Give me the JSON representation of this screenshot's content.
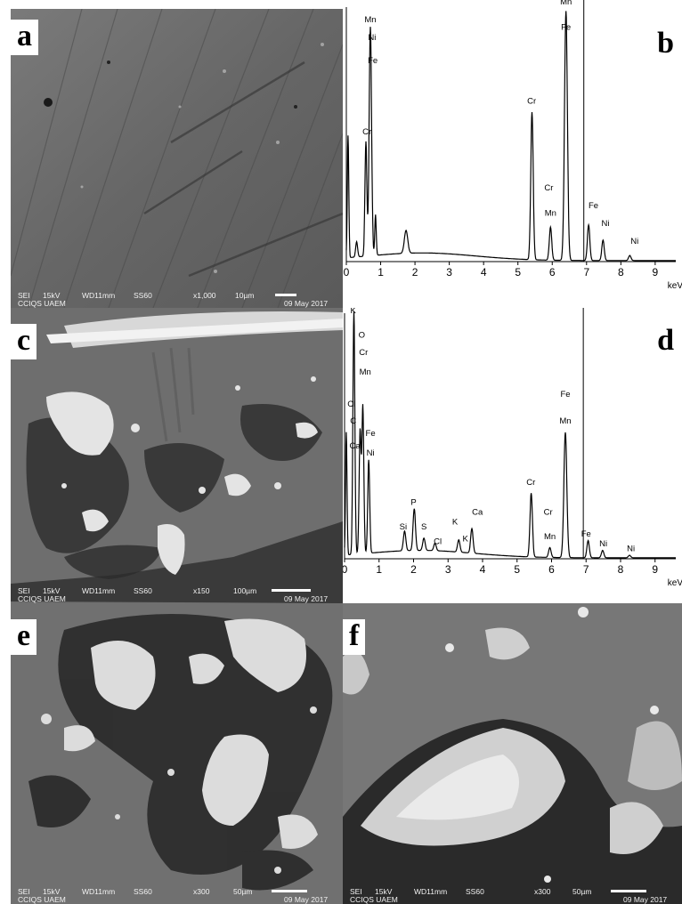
{
  "panels": {
    "a": {
      "letter": "a",
      "info": {
        "mode": "SEI",
        "kv": "15kV",
        "wd": "WD11mm",
        "ss": "SS60",
        "mag": "x1,000",
        "scale": "10µm",
        "date": "09 May 2017",
        "lab": "CCIQS UAEM"
      }
    },
    "b": {
      "letter": "b",
      "axis_unit": "keV",
      "ticks": [
        "0",
        "1",
        "2",
        "3",
        "4",
        "5",
        "6",
        "7",
        "8",
        "9"
      ]
    },
    "c": {
      "letter": "c",
      "info": {
        "mode": "SEI",
        "kv": "15kV",
        "wd": "WD11mm",
        "ss": "SS60",
        "mag": "x150",
        "scale": "100µm",
        "date": "09 May 2017",
        "lab": "CCIQS UAEM"
      }
    },
    "d": {
      "letter": "d",
      "axis_unit": "keV",
      "ticks": [
        "0",
        "1",
        "2",
        "3",
        "4",
        "5",
        "6",
        "7",
        "8",
        "9"
      ]
    },
    "e": {
      "letter": "e",
      "info": {
        "mode": "SEI",
        "kv": "15kV",
        "wd": "WD11mm",
        "ss": "SS60",
        "mag": "x300",
        "scale": "50µm",
        "date": "09 May 2017",
        "lab": "CCIQS UAEM"
      }
    },
    "f": {
      "letter": "f",
      "info": {
        "mode": "SEI",
        "kv": "15kV",
        "wd": "WD11mm",
        "ss": "SS60",
        "mag": "x300",
        "scale": "50µm",
        "date": "09 May 2017",
        "lab": "CCIQS UAEM"
      }
    }
  },
  "chart_data": [
    {
      "type": "line",
      "panel": "b",
      "xlabel": "keV",
      "xlim": [
        0,
        9.6
      ],
      "ylim": [
        0,
        1.0
      ],
      "x_ticks": [
        0,
        1,
        2,
        3,
        4,
        5,
        6,
        7,
        8,
        9
      ],
      "peaks": [
        {
          "x": 0.05,
          "y": 0.48,
          "w": 0.03
        },
        {
          "x": 0.3,
          "y": 0.06,
          "w": 0.04
        },
        {
          "x": 0.57,
          "y": 0.45,
          "w": 0.04
        },
        {
          "x": 0.7,
          "y": 0.9,
          "w": 0.05
        },
        {
          "x": 0.85,
          "y": 0.16,
          "w": 0.03
        },
        {
          "x": 1.74,
          "y": 0.09,
          "w": 0.07
        },
        {
          "x": 5.41,
          "y": 0.58,
          "w": 0.05
        },
        {
          "x": 5.95,
          "y": 0.13,
          "w": 0.05
        },
        {
          "x": 6.4,
          "y": 0.98,
          "w": 0.06
        },
        {
          "x": 7.06,
          "y": 0.14,
          "w": 0.05
        },
        {
          "x": 7.48,
          "y": 0.08,
          "w": 0.05
        },
        {
          "x": 8.26,
          "y": 0.02,
          "w": 0.05
        }
      ],
      "background": 0.03,
      "marker_line_x": 6.92,
      "annotations": [
        {
          "text": "Mn",
          "x": 0.7,
          "y": 0.94
        },
        {
          "text": "Ni",
          "x": 0.75,
          "y": 0.87
        },
        {
          "text": "Fe",
          "x": 0.77,
          "y": 0.78
        },
        {
          "text": "Cr",
          "x": 0.6,
          "y": 0.5
        },
        {
          "text": "Cr",
          "x": 5.4,
          "y": 0.62
        },
        {
          "text": "Cr",
          "x": 5.9,
          "y": 0.28
        },
        {
          "text": "Mn",
          "x": 5.95,
          "y": 0.18
        },
        {
          "text": "Mn",
          "x": 6.4,
          "y": 1.01
        },
        {
          "text": "Fe",
          "x": 6.4,
          "y": 0.91
        },
        {
          "text": "Fe",
          "x": 7.2,
          "y": 0.21
        },
        {
          "text": "Ni",
          "x": 7.55,
          "y": 0.14
        },
        {
          "text": "Ni",
          "x": 8.4,
          "y": 0.07
        }
      ]
    },
    {
      "type": "line",
      "panel": "d",
      "xlabel": "keV",
      "xlim": [
        0,
        9.6
      ],
      "ylim": [
        0,
        1.0
      ],
      "x_ticks": [
        0,
        1,
        2,
        3,
        4,
        5,
        6,
        7,
        8,
        9
      ],
      "peaks": [
        {
          "x": 0.05,
          "y": 0.5,
          "w": 0.03
        },
        {
          "x": 0.27,
          "y": 0.99,
          "w": 0.04
        },
        {
          "x": 0.45,
          "y": 0.5,
          "w": 0.04
        },
        {
          "x": 0.53,
          "y": 0.6,
          "w": 0.04
        },
        {
          "x": 0.7,
          "y": 0.38,
          "w": 0.04
        },
        {
          "x": 1.74,
          "y": 0.08,
          "w": 0.05
        },
        {
          "x": 2.02,
          "y": 0.17,
          "w": 0.05
        },
        {
          "x": 2.3,
          "y": 0.05,
          "w": 0.05
        },
        {
          "x": 2.62,
          "y": 0.03,
          "w": 0.05
        },
        {
          "x": 3.31,
          "y": 0.05,
          "w": 0.05
        },
        {
          "x": 3.69,
          "y": 0.1,
          "w": 0.05
        },
        {
          "x": 5.41,
          "y": 0.26,
          "w": 0.05
        },
        {
          "x": 5.95,
          "y": 0.04,
          "w": 0.05
        },
        {
          "x": 6.4,
          "y": 0.51,
          "w": 0.06
        },
        {
          "x": 7.06,
          "y": 0.07,
          "w": 0.05
        },
        {
          "x": 7.48,
          "y": 0.03,
          "w": 0.05
        },
        {
          "x": 8.26,
          "y": 0.01,
          "w": 0.05
        }
      ],
      "background": 0.03,
      "marker_line_x": 6.92,
      "annotations": [
        {
          "text": "K",
          "x": 0.25,
          "y": 1.0
        },
        {
          "text": "O",
          "x": 0.5,
          "y": 0.9
        },
        {
          "text": "Cr",
          "x": 0.55,
          "y": 0.83
        },
        {
          "text": "Mn",
          "x": 0.6,
          "y": 0.75
        },
        {
          "text": "Cl",
          "x": 0.2,
          "y": 0.62
        },
        {
          "text": "C",
          "x": 0.25,
          "y": 0.55
        },
        {
          "text": "Ca",
          "x": 0.3,
          "y": 0.45
        },
        {
          "text": "Fe",
          "x": 0.75,
          "y": 0.5
        },
        {
          "text": "Ni",
          "x": 0.75,
          "y": 0.42
        },
        {
          "text": "Si",
          "x": 1.7,
          "y": 0.12
        },
        {
          "text": "P",
          "x": 2.0,
          "y": 0.22
        },
        {
          "text": "S",
          "x": 2.3,
          "y": 0.12
        },
        {
          "text": "Cl",
          "x": 2.7,
          "y": 0.06
        },
        {
          "text": "K",
          "x": 3.2,
          "y": 0.14
        },
        {
          "text": "K",
          "x": 3.5,
          "y": 0.07
        },
        {
          "text": "Ca",
          "x": 3.85,
          "y": 0.18
        },
        {
          "text": "Cr",
          "x": 5.4,
          "y": 0.3
        },
        {
          "text": "Cr",
          "x": 5.9,
          "y": 0.18
        },
        {
          "text": "Mn",
          "x": 5.95,
          "y": 0.08
        },
        {
          "text": "Fe",
          "x": 6.4,
          "y": 0.66
        },
        {
          "text": "Mn",
          "x": 6.4,
          "y": 0.55
        },
        {
          "text": "Fe",
          "x": 7.0,
          "y": 0.09
        },
        {
          "text": "Ni",
          "x": 7.5,
          "y": 0.05
        },
        {
          "text": "Ni",
          "x": 8.3,
          "y": 0.03
        }
      ]
    }
  ]
}
